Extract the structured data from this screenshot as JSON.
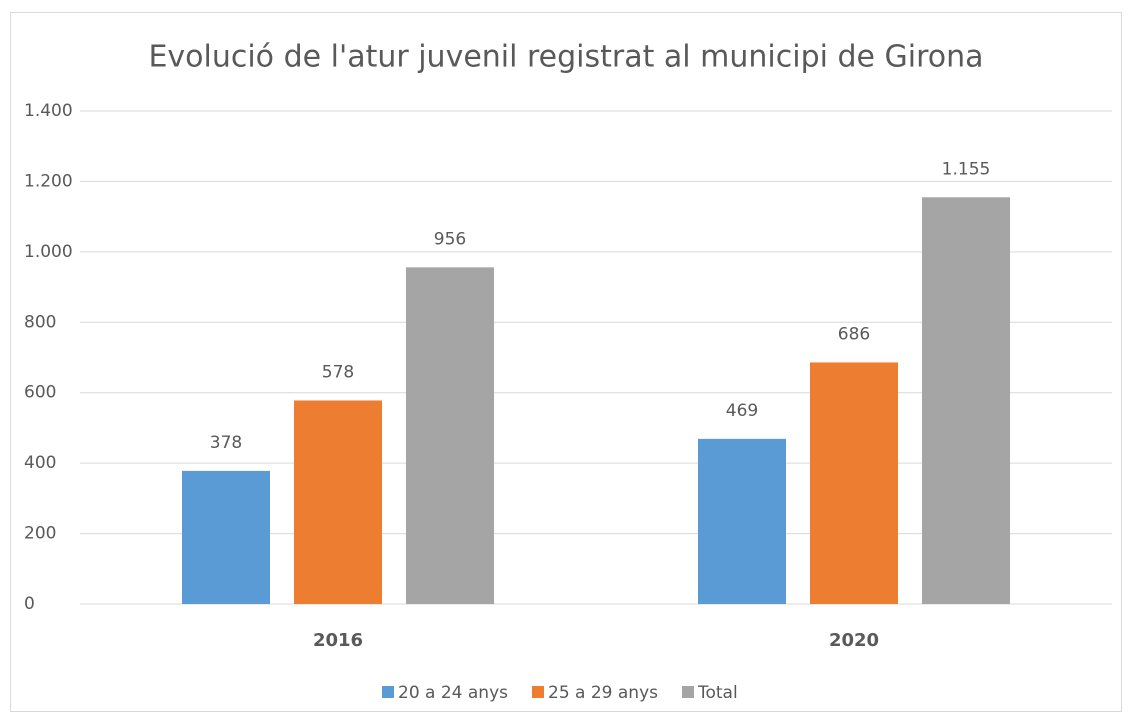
{
  "chart_data": {
    "type": "bar",
    "title": "Evolució de l'atur juvenil registrat al municipi de Girona",
    "categories": [
      "2016",
      "2020"
    ],
    "series": [
      {
        "name": "20 a 24 anys",
        "color": "#5b9bd5",
        "values": [
          378,
          469
        ]
      },
      {
        "name": "25 a 29 anys",
        "color": "#ed7d31",
        "values": [
          578,
          686
        ]
      },
      {
        "name": "Total",
        "color": "#a5a5a5",
        "values": [
          956,
          1155
        ],
        "value_labels": [
          "956",
          "1.155"
        ]
      }
    ],
    "ylim": [
      0,
      1400
    ],
    "yticks": [
      0,
      200,
      400,
      600,
      800,
      {
        "value": 1000,
        "label": "1.000"
      },
      {
        "value": 1200,
        "label": "1.200"
      },
      {
        "value": 1400,
        "label": "1.400"
      }
    ],
    "grid": true,
    "legend": "bottom"
  }
}
